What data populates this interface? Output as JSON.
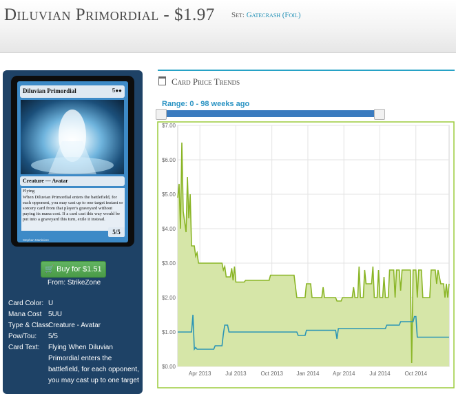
{
  "header": {
    "title": "Diluvian Primordial - $1.97",
    "set_label": "Set:",
    "set_name": "Gatecrash (Foil)"
  },
  "card": {
    "name": "Diluvian Primordial",
    "mana": "5UU",
    "mana_symbols": "5●●",
    "type_line": "Creature — Avatar",
    "keyword": "Flying",
    "rules_text": "When Diluvian Primordial enters the battlefield, for each opponent, you may cast up to one target instant or sorcery card from that player's graveyard without paying its mana cost. If a card cast this way would be put into a graveyard this turn, exile it instead.",
    "power_toughness": "5/5",
    "artist": "Stephan Martiniere",
    "colors": {
      "frame": "#3d8ac7",
      "border": "#0d0d0d",
      "sidebar": "#1e4266"
    }
  },
  "buy": {
    "label": "Buy for $1.51",
    "icon": "shopping-cart-icon",
    "from_label": "From: StrikeZone",
    "color": "#5cb85c"
  },
  "details": [
    {
      "label": "Card Color:",
      "value": "U"
    },
    {
      "label": "Mana Cost",
      "value": "5UU"
    },
    {
      "label": "Type & Class:",
      "value": "Creature - Avatar"
    },
    {
      "label": "Pow/Tou:",
      "value": "5/5"
    },
    {
      "label": "Card Text:",
      "value": "Flying When Diluvian"
    }
  ],
  "card_text_continued": [
    "Primordial enters the",
    "battlefield, for each opponent,",
    "you may cast up to one target"
  ],
  "trends": {
    "title": "Card Price Trends",
    "icon": "calendar-icon",
    "range_label": "Range: 0 - 98 weeks ago",
    "accent_color": "#27a2c6"
  },
  "chart_data": {
    "type": "line",
    "title": "",
    "xlabel": "",
    "ylabel": "",
    "ylim": [
      0,
      7
    ],
    "xlim": [
      0,
      98
    ],
    "grid": true,
    "y_ticks": [
      "$0.00",
      "$1.00",
      "$2.00",
      "$3.00",
      "$4.00",
      "$5.00",
      "$6.00",
      "$7.00"
    ],
    "x_ticks": [
      {
        "week": 8,
        "label": "Apr 2013"
      },
      {
        "week": 21,
        "label": "Jul 2013"
      },
      {
        "week": 34,
        "label": "Oct 2013"
      },
      {
        "week": 47,
        "label": "Jan 2014"
      },
      {
        "week": 60,
        "label": "Apr 2014"
      },
      {
        "week": 73,
        "label": "Jul 2014"
      },
      {
        "week": 86,
        "label": "Oct 2014"
      }
    ],
    "series": [
      {
        "color": "#8ab526",
        "fill": "#d6e6a8",
        "points": [
          [
            0,
            4.9
          ],
          [
            0.5,
            5.3
          ],
          [
            1,
            4.0
          ],
          [
            1.5,
            6.5
          ],
          [
            2,
            4.5
          ],
          [
            3,
            3.9
          ],
          [
            3.5,
            5.5
          ],
          [
            4,
            4.3
          ],
          [
            4.5,
            5.0
          ],
          [
            5,
            3.5
          ],
          [
            6,
            3.5
          ],
          [
            6.5,
            3.2
          ],
          [
            7,
            3.3
          ],
          [
            7.5,
            3.0
          ],
          [
            16,
            3.0
          ],
          [
            16.5,
            2.8
          ],
          [
            17,
            2.9
          ],
          [
            17.5,
            2.6
          ],
          [
            19,
            2.6
          ],
          [
            19.5,
            2.85
          ],
          [
            20,
            2.5
          ],
          [
            20.5,
            2.9
          ],
          [
            21,
            2.45
          ],
          [
            24,
            2.45
          ],
          [
            24.5,
            2.5
          ],
          [
            33,
            2.5
          ],
          [
            33.5,
            2.65
          ],
          [
            42,
            2.65
          ],
          [
            43,
            2.0
          ],
          [
            46,
            2.0
          ],
          [
            46.5,
            2.4
          ],
          [
            48,
            2.4
          ],
          [
            48.5,
            2.0
          ],
          [
            52,
            2.0
          ],
          [
            52.5,
            2.3
          ],
          [
            53,
            2.0
          ],
          [
            57,
            2.0
          ],
          [
            57.5,
            1.9
          ],
          [
            59,
            1.9
          ],
          [
            59.5,
            2.0
          ],
          [
            63,
            2.0
          ],
          [
            63.5,
            2.3
          ],
          [
            64,
            2.0
          ],
          [
            65,
            2.0
          ],
          [
            65.5,
            2.9
          ],
          [
            66,
            2.0
          ],
          [
            67,
            2.0
          ],
          [
            67.5,
            2.8
          ],
          [
            68,
            2.4
          ],
          [
            70,
            2.4
          ],
          [
            70.5,
            2.9
          ],
          [
            71,
            2.0
          ],
          [
            72,
            2.0
          ],
          [
            72.5,
            2.8
          ],
          [
            73,
            2.0
          ],
          [
            74,
            2.0
          ],
          [
            74.5,
            2.6
          ],
          [
            75,
            2.0
          ],
          [
            76,
            2.0
          ],
          [
            76.5,
            2.8
          ],
          [
            78,
            2.8
          ],
          [
            78.5,
            2.0
          ],
          [
            79,
            2.8
          ],
          [
            80,
            2.8
          ],
          [
            80.5,
            2.2
          ],
          [
            81,
            2.8
          ],
          [
            84,
            2.8
          ],
          [
            84.5,
            0.1
          ],
          [
            85,
            2.8
          ],
          [
            86,
            2.8
          ],
          [
            86.5,
            2.0
          ],
          [
            87,
            2.8
          ],
          [
            88,
            2.8
          ],
          [
            88.5,
            2.0
          ],
          [
            91,
            2.0
          ],
          [
            91.5,
            2.8
          ],
          [
            93,
            2.8
          ],
          [
            93.5,
            2.4
          ],
          [
            94,
            2.8
          ],
          [
            95,
            2.4
          ],
          [
            96,
            2.4
          ],
          [
            96.5,
            2.0
          ],
          [
            97,
            2.4
          ],
          [
            97.5,
            2.0
          ],
          [
            98,
            2.4
          ]
        ]
      },
      {
        "color": "#2b95b5",
        "points": [
          [
            0,
            1.0
          ],
          [
            5,
            1.0
          ],
          [
            5.5,
            1.5
          ],
          [
            6,
            0.5
          ],
          [
            6.5,
            0.55
          ],
          [
            7,
            0.5
          ],
          [
            13,
            0.5
          ],
          [
            13.5,
            0.6
          ],
          [
            16,
            0.6
          ],
          [
            16.5,
            0.95
          ],
          [
            17,
            1.2
          ],
          [
            18,
            1.2
          ],
          [
            18.5,
            1.0
          ],
          [
            43,
            1.0
          ],
          [
            43.5,
            0.9
          ],
          [
            46,
            0.9
          ],
          [
            46.5,
            1.05
          ],
          [
            57,
            1.05
          ],
          [
            57.5,
            0.8
          ],
          [
            58,
            1.1
          ],
          [
            75,
            1.1
          ],
          [
            75.5,
            1.2
          ],
          [
            80,
            1.2
          ],
          [
            80.5,
            1.3
          ],
          [
            85,
            1.3
          ],
          [
            85.5,
            1.45
          ],
          [
            86,
            1.45
          ],
          [
            86.5,
            0.85
          ],
          [
            98,
            0.85
          ]
        ]
      }
    ]
  }
}
